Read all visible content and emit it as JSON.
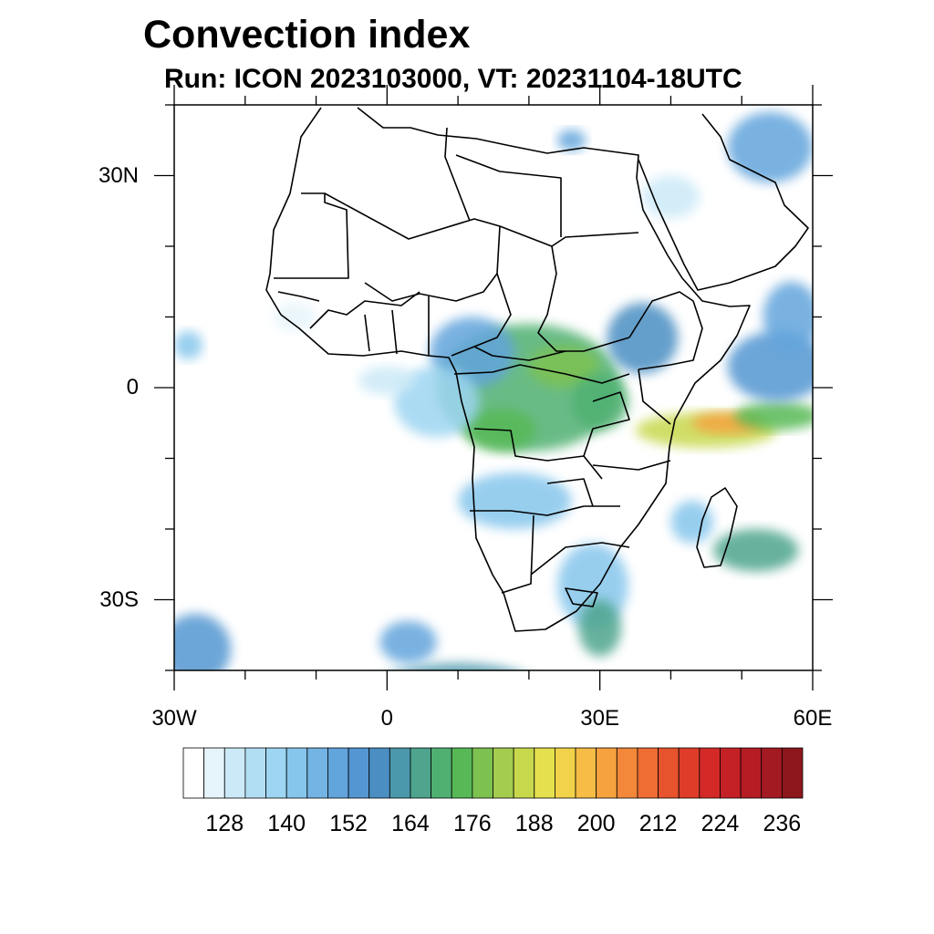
{
  "title": "Convection index",
  "subtitle": "Run: ICON 2023103000,  VT: 20231104-18UTC",
  "map": {
    "projection": "cylindrical equidistant",
    "lon_range": [
      -30,
      60
    ],
    "lat_range": [
      -40,
      40
    ],
    "x_ticks": [
      {
        "lon": -30,
        "label": "30W"
      },
      {
        "lon": 0,
        "label": "0"
      },
      {
        "lon": 30,
        "label": "30E"
      },
      {
        "lon": 60,
        "label": "60E"
      }
    ],
    "y_ticks": [
      {
        "lat": 30,
        "label": "30N"
      },
      {
        "lat": 0,
        "label": "0"
      },
      {
        "lat": -30,
        "label": "30S"
      }
    ],
    "field": {
      "name": "convection index",
      "blobs": [
        {
          "lon": 20,
          "lat": 0,
          "rlon": 13,
          "rlat": 9,
          "value": 168,
          "desc": "Congo basin"
        },
        {
          "lon": 25,
          "lat": 3,
          "rlon": 5,
          "rlat": 3,
          "value": 176
        },
        {
          "lon": 16,
          "lat": -6,
          "rlon": 5,
          "rlat": 3,
          "value": 172
        },
        {
          "lon": 30,
          "lat": -2,
          "rlon": 4,
          "rlat": 4,
          "value": 170
        },
        {
          "lon": 36,
          "lat": 7,
          "rlon": 5,
          "rlat": 5,
          "value": 158
        },
        {
          "lon": 12,
          "lat": 5,
          "rlon": 6,
          "rlat": 5,
          "value": 150
        },
        {
          "lon": 7,
          "lat": -2,
          "rlon": 6,
          "rlat": 5,
          "value": 138
        },
        {
          "lon": 0,
          "lat": 1,
          "rlon": 4,
          "rlat": 2,
          "value": 128
        },
        {
          "lon": 45,
          "lat": -6,
          "rlon": 10,
          "rlat": 2.5,
          "value": 185
        },
        {
          "lon": 48,
          "lat": -5,
          "rlon": 5,
          "rlat": 1.5,
          "value": 202
        },
        {
          "lon": 55,
          "lat": -4,
          "rlon": 6,
          "rlat": 2,
          "value": 172
        },
        {
          "lon": 55,
          "lat": 3,
          "rlon": 7,
          "rlat": 5,
          "value": 155
        },
        {
          "lon": 57,
          "lat": 10,
          "rlon": 4,
          "rlat": 5,
          "value": 150
        },
        {
          "lon": 54,
          "lat": 34,
          "rlon": 6,
          "rlat": 5,
          "value": 150
        },
        {
          "lon": 40,
          "lat": 27,
          "rlon": 4,
          "rlat": 3,
          "value": 130
        },
        {
          "lon": 52,
          "lat": -23,
          "rlon": 6,
          "rlat": 3,
          "value": 165
        },
        {
          "lon": 43,
          "lat": -19,
          "rlon": 3,
          "rlat": 3,
          "value": 140
        },
        {
          "lon": 29,
          "lat": -28,
          "rlon": 5,
          "rlat": 6,
          "value": 140
        },
        {
          "lon": 30,
          "lat": -34,
          "rlon": 3,
          "rlat": 4,
          "value": 165
        },
        {
          "lon": 18,
          "lat": -16,
          "rlon": 8,
          "rlat": 4,
          "value": 140
        },
        {
          "lon": 10,
          "lat": -43,
          "rlon": 12,
          "rlat": 4,
          "value": 160
        },
        {
          "lon": 3,
          "lat": -36,
          "rlon": 4,
          "rlat": 3,
          "value": 150
        },
        {
          "lon": -27,
          "lat": -37,
          "rlon": 5,
          "rlat": 5,
          "value": 155
        },
        {
          "lon": -28,
          "lat": 6,
          "rlon": 2,
          "rlat": 2,
          "value": 140
        },
        {
          "lon": -13,
          "lat": 10,
          "rlon": 3,
          "rlat": 2,
          "value": 125
        },
        {
          "lon": 26,
          "lat": 35,
          "rlon": 2,
          "rlat": 1.5,
          "value": 150
        }
      ]
    }
  },
  "colorbar": {
    "levels": [
      120,
      124,
      128,
      132,
      136,
      140,
      144,
      148,
      152,
      156,
      160,
      164,
      168,
      172,
      176,
      180,
      184,
      188,
      192,
      196,
      200,
      204,
      208,
      212,
      216,
      220,
      224,
      228,
      232,
      236
    ],
    "colors": [
      "#ffffff",
      "#e6f4fb",
      "#cbe9f7",
      "#b2def4",
      "#9dd5f2",
      "#86c6ec",
      "#73b4e4",
      "#62a4dc",
      "#5396d1",
      "#4a8ec2",
      "#4b98ab",
      "#4ea48d",
      "#4fb071",
      "#57b955",
      "#7dc251",
      "#a4cc4f",
      "#c8d84d",
      "#e5e04d",
      "#f2d24a",
      "#f6bc45",
      "#f6a23f",
      "#f4883a",
      "#ef6c33",
      "#e6532c",
      "#df3d29",
      "#d32a27",
      "#c42126",
      "#b51c24",
      "#a31a22",
      "#8c171d"
    ],
    "tick_labels": [
      "128",
      "140",
      "152",
      "164",
      "176",
      "188",
      "200",
      "212",
      "224",
      "236"
    ]
  }
}
